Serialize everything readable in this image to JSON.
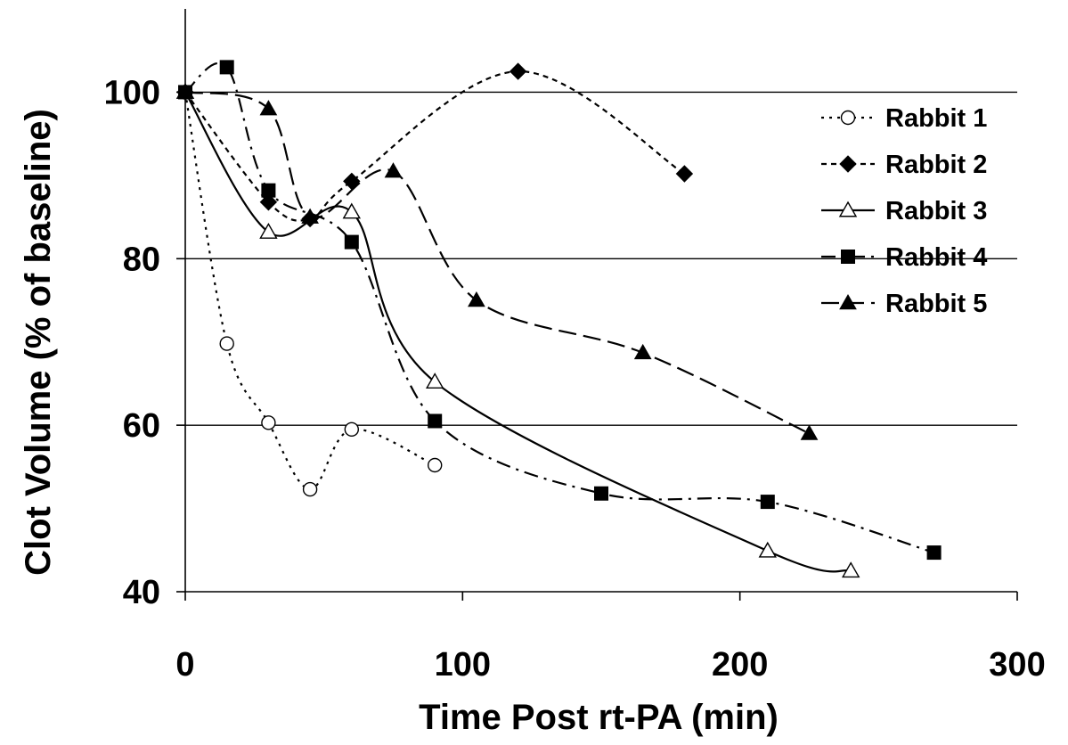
{
  "chart_data": {
    "type": "line",
    "title": "",
    "xlabel": "Time Post rt-PA (min)",
    "ylabel": "Clot Volume (% of baseline)",
    "xlim": [
      0,
      300
    ],
    "ylim": [
      40,
      110
    ],
    "xticks": [
      "0",
      "100",
      "200",
      "300"
    ],
    "yticks": [
      "40",
      "60",
      "80",
      "100"
    ],
    "grid": "horizontal",
    "legend_position": "right",
    "series": [
      {
        "name": "Rabbit 1",
        "marker": "open-circle",
        "dash": "dotted",
        "points": [
          [
            0,
            100
          ],
          [
            15,
            69.8
          ],
          [
            30,
            60.3
          ],
          [
            45,
            52.3
          ],
          [
            60,
            59.5
          ],
          [
            90,
            55.2
          ]
        ]
      },
      {
        "name": "Rabbit 2",
        "marker": "filled-diamond",
        "dash": "dashed-short",
        "points": [
          [
            0,
            100
          ],
          [
            30,
            86.8
          ],
          [
            45,
            84.8
          ],
          [
            60,
            89.3
          ],
          [
            120,
            102.5
          ],
          [
            180,
            90.2
          ]
        ]
      },
      {
        "name": "Rabbit 3",
        "marker": "open-triangle",
        "dash": "solid",
        "points": [
          [
            0,
            100
          ],
          [
            30,
            83.2
          ],
          [
            60,
            85.6
          ],
          [
            90,
            65.2
          ],
          [
            210,
            44.9
          ],
          [
            240,
            42.5
          ]
        ]
      },
      {
        "name": "Rabbit 4",
        "marker": "filled-square",
        "dash": "dash-dot",
        "points": [
          [
            0,
            100
          ],
          [
            15,
            103
          ],
          [
            30,
            88.2
          ],
          [
            60,
            82
          ],
          [
            90,
            60.5
          ],
          [
            150,
            51.8
          ],
          [
            210,
            50.8
          ],
          [
            270,
            44.7
          ]
        ]
      },
      {
        "name": "Rabbit 5",
        "marker": "filled-triangle",
        "dash": "dashed-long",
        "points": [
          [
            0,
            100
          ],
          [
            30,
            98
          ],
          [
            45,
            85
          ],
          [
            75,
            90.5
          ],
          [
            105,
            75
          ],
          [
            165,
            68.7
          ],
          [
            225,
            59
          ]
        ]
      }
    ]
  }
}
